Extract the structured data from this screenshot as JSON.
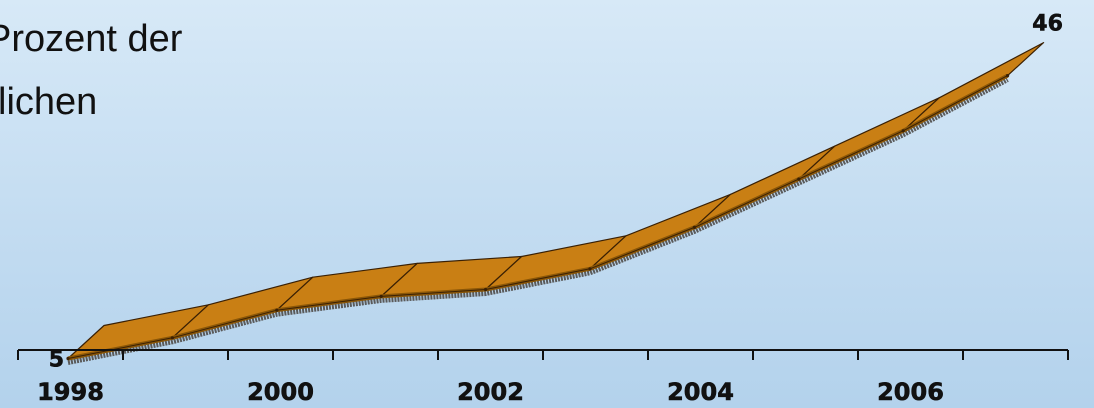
{
  "title_lines": [
    "Prozent der",
    "lichen"
  ],
  "chart_data": {
    "type": "area",
    "title": "Prozent der lichen",
    "x": [
      1998,
      1999,
      2000,
      2001,
      2002,
      2003,
      2004,
      2005,
      2006,
      2007
    ],
    "values": [
      5,
      8,
      12,
      14,
      15,
      18,
      24,
      31,
      38,
      46
    ],
    "start_label": "5",
    "end_label": "46",
    "tick_labels": [
      "1998",
      "2000",
      "2002",
      "2004",
      "2006"
    ],
    "xlim": [
      1997.8,
      2007.4
    ],
    "ylim": [
      0,
      50
    ],
    "colors": {
      "ribbon_top": "#c97f14",
      "ribbon_front": "#8a5607",
      "edge": "#3a2004",
      "shadow": "#5a5a5a",
      "axis": "#111111"
    }
  }
}
